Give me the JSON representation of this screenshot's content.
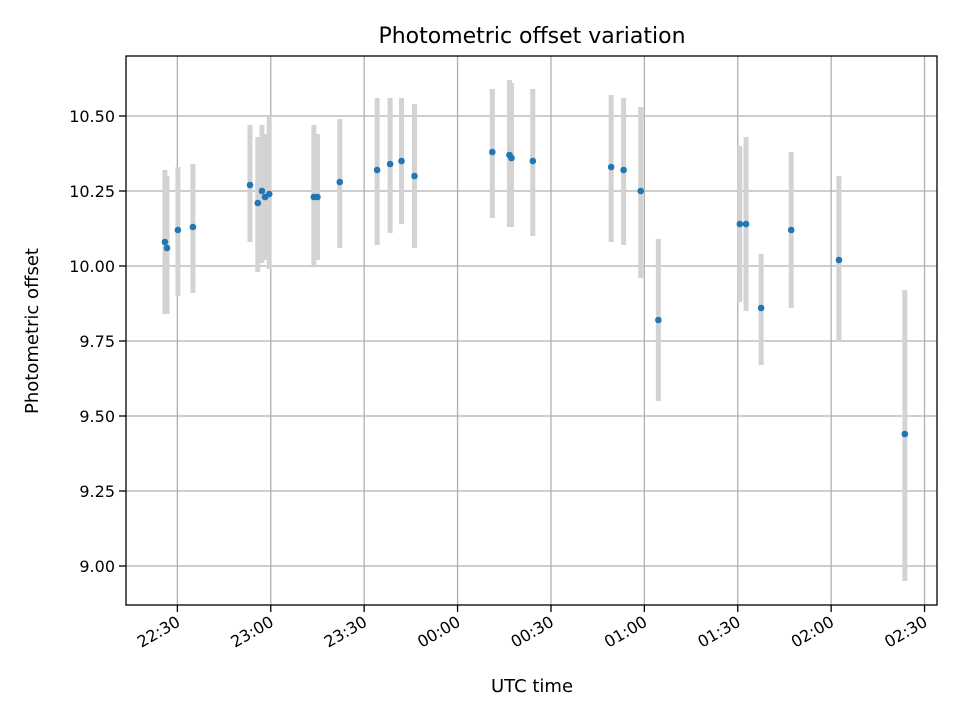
{
  "chart_data": {
    "type": "scatter",
    "title": "Photometric offset variation",
    "xlabel": "UTC time",
    "ylabel": "Photometric offset",
    "x_ticks": [
      "22:30",
      "23:00",
      "23:30",
      "00:00",
      "00:30",
      "01:00",
      "01:30",
      "02:00",
      "02:30"
    ],
    "y_ticks": [
      "9.00",
      "9.25",
      "9.50",
      "9.75",
      "10.00",
      "10.25",
      "10.50"
    ],
    "xlim": [
      "22:13:30",
      "02:34:00"
    ],
    "ylim": [
      8.87,
      10.7
    ],
    "grid": true,
    "colors": {
      "point": "#1f77b4",
      "errorbar": "#d3d3d3"
    },
    "points": [
      {
        "time": "22:26:00",
        "y": 10.08,
        "yerr_low": 9.84,
        "yerr_high": 10.32
      },
      {
        "time": "22:26:40",
        "y": 10.06,
        "yerr_low": 9.84,
        "yerr_high": 10.3
      },
      {
        "time": "22:30:10",
        "y": 10.12,
        "yerr_low": 9.9,
        "yerr_high": 10.33
      },
      {
        "time": "22:35:00",
        "y": 10.13,
        "yerr_low": 9.91,
        "yerr_high": 10.34
      },
      {
        "time": "22:53:20",
        "y": 10.27,
        "yerr_low": 10.08,
        "yerr_high": 10.47
      },
      {
        "time": "22:55:50",
        "y": 10.21,
        "yerr_low": 9.98,
        "yerr_high": 10.43
      },
      {
        "time": "22:57:10",
        "y": 10.25,
        "yerr_low": 10.01,
        "yerr_high": 10.47
      },
      {
        "time": "22:58:10",
        "y": 10.23,
        "yerr_low": 10.02,
        "yerr_high": 10.44
      },
      {
        "time": "22:59:30",
        "y": 10.24,
        "yerr_low": 9.99,
        "yerr_high": 10.5
      },
      {
        "time": "23:13:50",
        "y": 10.23,
        "yerr_low": 10.0,
        "yerr_high": 10.47
      },
      {
        "time": "23:15:00",
        "y": 10.23,
        "yerr_low": 10.02,
        "yerr_high": 10.44
      },
      {
        "time": "23:22:10",
        "y": 10.28,
        "yerr_low": 10.06,
        "yerr_high": 10.49
      },
      {
        "time": "23:34:10",
        "y": 10.32,
        "yerr_low": 10.07,
        "yerr_high": 10.56
      },
      {
        "time": "23:38:20",
        "y": 10.34,
        "yerr_low": 10.11,
        "yerr_high": 10.56
      },
      {
        "time": "23:42:00",
        "y": 10.35,
        "yerr_low": 10.14,
        "yerr_high": 10.56
      },
      {
        "time": "23:46:10",
        "y": 10.3,
        "yerr_low": 10.06,
        "yerr_high": 10.54
      },
      {
        "time": "00:11:10",
        "y": 10.38,
        "yerr_low": 10.16,
        "yerr_high": 10.59
      },
      {
        "time": "00:16:40",
        "y": 10.37,
        "yerr_low": 10.13,
        "yerr_high": 10.62
      },
      {
        "time": "00:17:20",
        "y": 10.36,
        "yerr_low": 10.13,
        "yerr_high": 10.61
      },
      {
        "time": "00:24:10",
        "y": 10.35,
        "yerr_low": 10.1,
        "yerr_high": 10.59
      },
      {
        "time": "00:49:20",
        "y": 10.33,
        "yerr_low": 10.08,
        "yerr_high": 10.57
      },
      {
        "time": "00:53:20",
        "y": 10.32,
        "yerr_low": 10.07,
        "yerr_high": 10.56
      },
      {
        "time": "00:58:50",
        "y": 10.25,
        "yerr_low": 9.96,
        "yerr_high": 10.53
      },
      {
        "time": "01:04:30",
        "y": 9.82,
        "yerr_low": 9.55,
        "yerr_high": 10.09
      },
      {
        "time": "01:30:40",
        "y": 10.14,
        "yerr_low": 9.88,
        "yerr_high": 10.4
      },
      {
        "time": "01:32:40",
        "y": 10.14,
        "yerr_low": 9.85,
        "yerr_high": 10.43
      },
      {
        "time": "01:37:30",
        "y": 9.86,
        "yerr_low": 9.67,
        "yerr_high": 10.04
      },
      {
        "time": "01:47:10",
        "y": 10.12,
        "yerr_low": 9.86,
        "yerr_high": 10.38
      },
      {
        "time": "02:02:30",
        "y": 10.02,
        "yerr_low": 9.75,
        "yerr_high": 10.3
      },
      {
        "time": "02:23:40",
        "y": 9.44,
        "yerr_low": 8.95,
        "yerr_high": 9.92
      }
    ]
  }
}
